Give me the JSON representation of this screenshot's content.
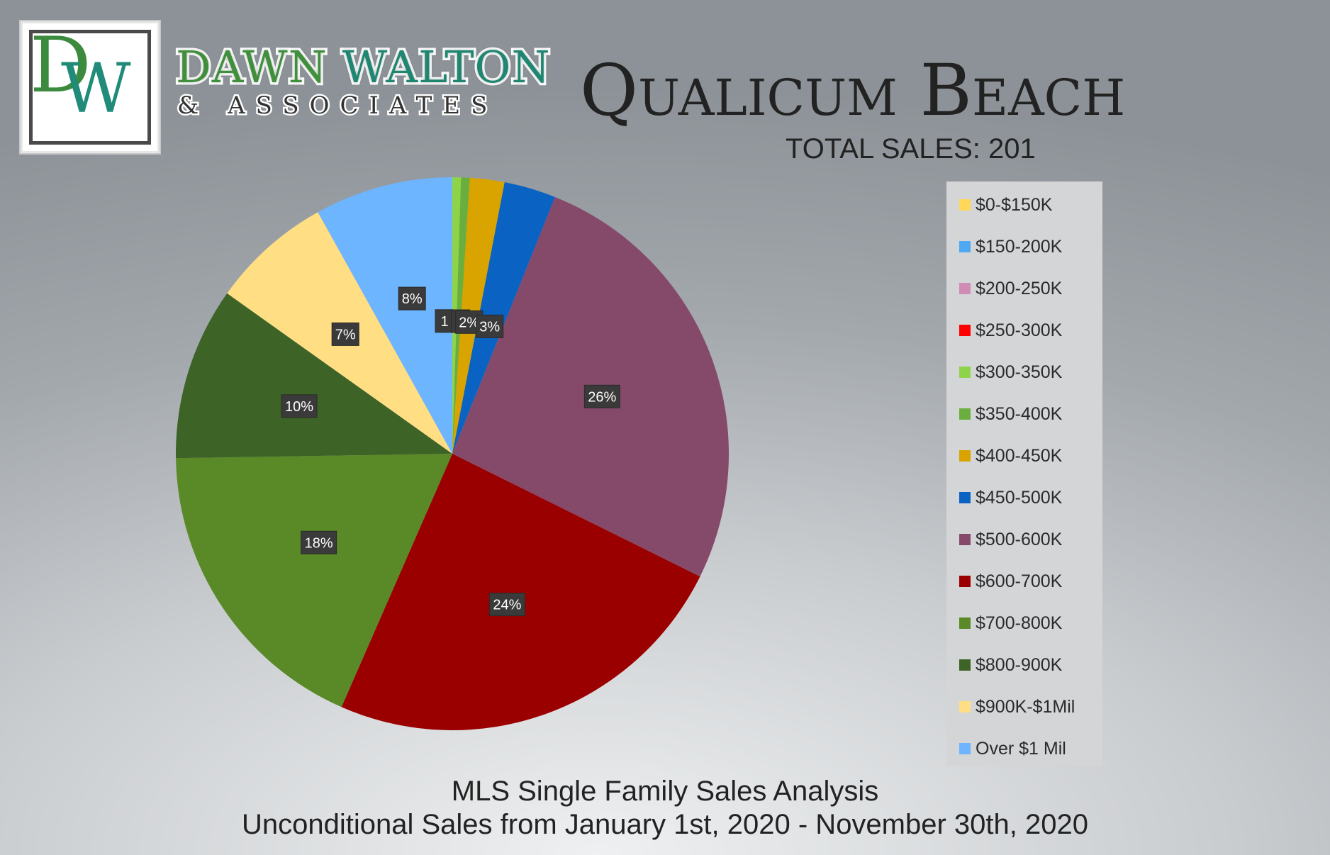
{
  "brand": {
    "logo_letters": "DW",
    "name_part1": "DAWN",
    "name_part2": "WALTON",
    "subtitle": "& ASSOCIATES"
  },
  "header": {
    "title": "Qualicum Beach",
    "total_sales": "TOTAL SALES: 201"
  },
  "footer": {
    "line1": "MLS Single Family Sales Analysis",
    "line2": "Unconditional Sales from January 1st, 2020 - November 30th, 2020"
  },
  "chart_data": {
    "type": "pie",
    "title": "",
    "legend_position": "right",
    "slices": [
      {
        "label": "$0-$150K",
        "value": 0,
        "color": "#FFD85A",
        "data_label": ""
      },
      {
        "label": "$150-200K",
        "value": 0,
        "color": "#4FA8F2",
        "data_label": ""
      },
      {
        "label": "$200-250K",
        "value": 0,
        "color": "#D08CB4",
        "data_label": ""
      },
      {
        "label": "$250-300K",
        "value": 0,
        "color": "#FF0000",
        "data_label": ""
      },
      {
        "label": "$300-350K",
        "value": 0.5,
        "color": "#8ED449",
        "data_label": "1"
      },
      {
        "label": "$350-400K",
        "value": 0.5,
        "color": "#6AAF3E",
        "data_label": "1"
      },
      {
        "label": "$400-450K",
        "value": 2,
        "color": "#D9A400",
        "data_label": "2%"
      },
      {
        "label": "$450-500K",
        "value": 3,
        "color": "#0A63C2",
        "data_label": "3%"
      },
      {
        "label": "$500-600K",
        "value": 26,
        "color": "#854A6A",
        "data_label": "26%"
      },
      {
        "label": "$600-700K",
        "value": 24,
        "color": "#9B0000",
        "data_label": "24%"
      },
      {
        "label": "$700-800K",
        "value": 18,
        "color": "#5A8A28",
        "data_label": "18%"
      },
      {
        "label": "$800-900K",
        "value": 10,
        "color": "#3D6327",
        "data_label": "10%"
      },
      {
        "label": "$900K-$1Mil",
        "value": 7,
        "color": "#FFDE84",
        "data_label": "7%"
      },
      {
        "label": "Over $1 Mil",
        "value": 8,
        "color": "#6DB5FF",
        "data_label": "8%"
      }
    ]
  }
}
